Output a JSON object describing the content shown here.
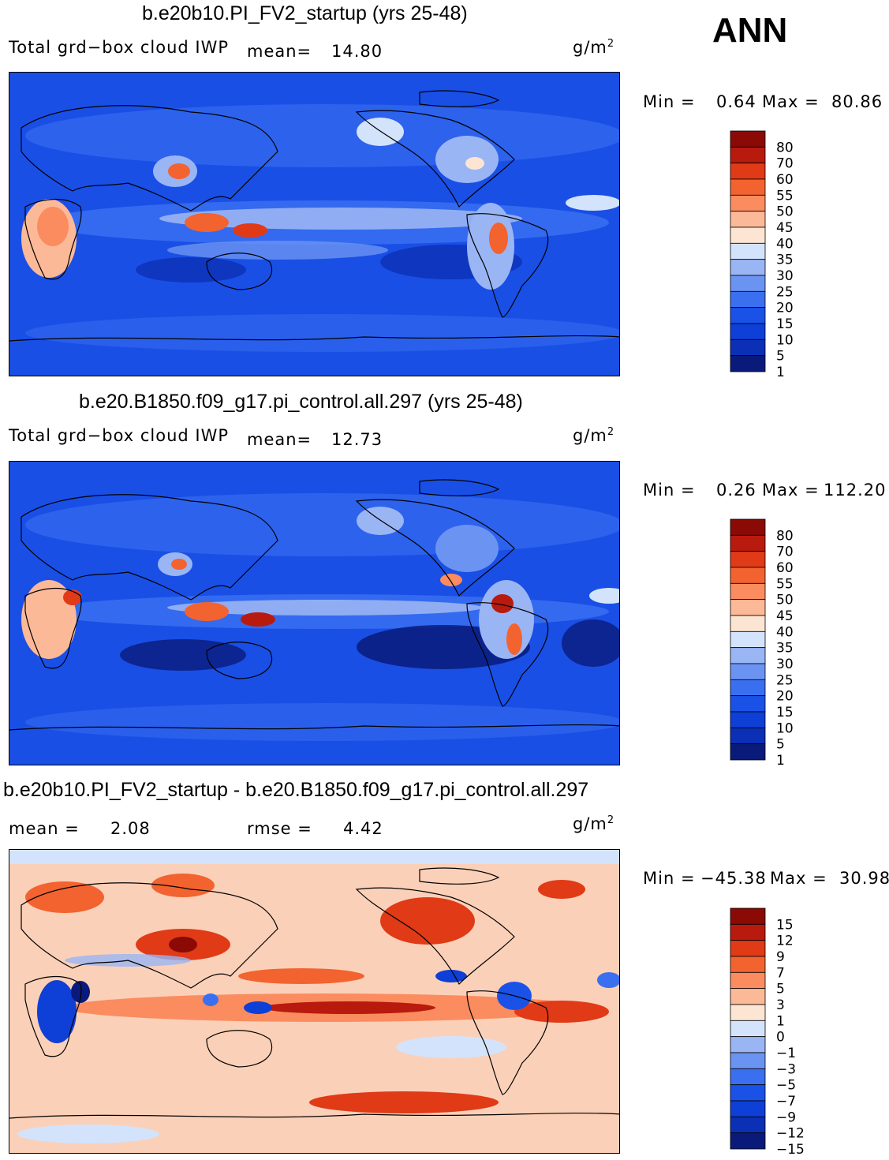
{
  "annotation": "ANN",
  "units": "g/m",
  "units_sup": "2",
  "colors": {
    "abs_scale": [
      "#0a1a7a",
      "#0b2fb5",
      "#0e3fd6",
      "#1a52e8",
      "#3a6ff0",
      "#6b93f2",
      "#9ab5f4",
      "#d3e3fb",
      "#fde5d3",
      "#fcb998",
      "#fa8c5f",
      "#f26330",
      "#e03a17",
      "#b81a0d",
      "#8b0a05"
    ],
    "diff_scale": [
      "#0a1a7a",
      "#0b2fb5",
      "#0e3fd6",
      "#1a52e8",
      "#3a6ff0",
      "#6b93f2",
      "#9ab5f4",
      "#d3e3fb",
      "#fde5d3",
      "#fcb998",
      "#fa8c5f",
      "#f26330",
      "#e03a17",
      "#b81a0d",
      "#8b0a05"
    ],
    "ocean_abs": "#1a4fe6",
    "ocean_diff": "#fbd0b8",
    "coast": "#000000"
  },
  "panels": [
    {
      "title": "b.e20b10.PI_FV2_startup (yrs 25-48)",
      "variable": "Total grd−box cloud IWP",
      "stat1_label": "mean=",
      "stat1_value": "14.80",
      "min_label": "Min =",
      "min_value": "0.64",
      "max_label": "Max =",
      "max_value": "80.86"
    },
    {
      "title": "b.e20.B1850.f09_g17.pi_control.all.297 (yrs 25-48)",
      "variable": "Total grd−box cloud IWP",
      "stat1_label": "mean=",
      "stat1_value": "12.73",
      "min_label": "Min =",
      "min_value": "0.26",
      "max_label": "Max =",
      "max_value": "112.20"
    },
    {
      "title": "b.e20b10.PI_FV2_startup - b.e20.B1850.f09_g17.pi_control.all.297",
      "stat1_label": "mean =",
      "stat1_value": "2.08",
      "stat2_label": "rmse =",
      "stat2_value": "4.42",
      "min_label": "Min =",
      "min_value": "−45.38",
      "max_label": "Max =",
      "max_value": "30.98"
    }
  ],
  "chart_data": [
    {
      "type": "heatmap",
      "title": "b.e20b10.PI_FV2_startup (yrs 25-48)",
      "variable": "Total grd-box cloud IWP",
      "units": "g/m^2",
      "mean": 14.8,
      "min": 0.64,
      "max": 80.86,
      "colorbar_levels": [
        "80",
        "70",
        "60",
        "55",
        "50",
        "45",
        "40",
        "35",
        "30",
        "25",
        "20",
        "15",
        "10",
        "5",
        "1"
      ]
    },
    {
      "type": "heatmap",
      "title": "b.e20.B1850.f09_g17.pi_control.all.297 (yrs 25-48)",
      "variable": "Total grd-box cloud IWP",
      "units": "g/m^2",
      "mean": 12.73,
      "min": 0.26,
      "max": 112.2,
      "colorbar_levels": [
        "80",
        "70",
        "60",
        "55",
        "50",
        "45",
        "40",
        "35",
        "30",
        "25",
        "20",
        "15",
        "10",
        "5",
        "1"
      ]
    },
    {
      "type": "heatmap",
      "title": "b.e20b10.PI_FV2_startup - b.e20.B1850.f09_g17.pi_control.all.297",
      "units": "g/m^2",
      "mean": 2.08,
      "rmse": 4.42,
      "min": -45.38,
      "max": 30.98,
      "colorbar_levels": [
        "15",
        "12",
        "9",
        "7",
        "5",
        "3",
        "1",
        "0",
        "−1",
        "−3",
        "−5",
        "−7",
        "−9",
        "−12",
        "−15"
      ]
    }
  ]
}
